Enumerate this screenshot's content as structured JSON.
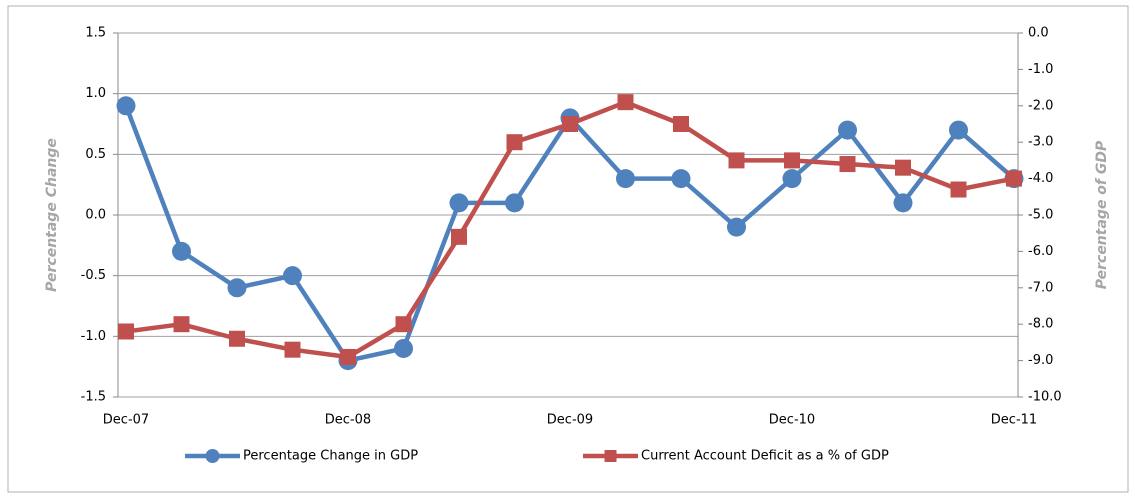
{
  "chart_data": {
    "type": "line",
    "categories": [
      "Dec-07",
      null,
      null,
      null,
      "Dec-08",
      null,
      null,
      null,
      "Dec-09",
      null,
      null,
      null,
      "Dec-10",
      null,
      null,
      null,
      "Dec-11"
    ],
    "series": [
      {
        "name": "Percentage Change in GDP",
        "color": "#4f81bd",
        "marker": "circle",
        "values": [
          0.9,
          -0.3,
          -0.6,
          -0.5,
          -1.2,
          -1.1,
          0.1,
          0.1,
          0.8,
          0.3,
          0.3,
          -0.1,
          0.3,
          0.7,
          0.1,
          0.7,
          0.3
        ]
      },
      {
        "name": "Current Account Deficit as a % of GDP",
        "color": "#c0504d",
        "marker": "square",
        "axis": "y2",
        "values": [
          -8.2,
          -8.0,
          -8.4,
          -8.7,
          -8.9,
          -8.0,
          -5.6,
          -3.0,
          -2.5,
          -1.9,
          -2.5,
          -3.5,
          -3.5,
          -3.6,
          -3.7,
          -4.3,
          -4.0
        ]
      }
    ],
    "ylabel": "Percentage Change",
    "y2label": "Percentage of GDP",
    "ylim": [
      -1.5,
      1.5
    ],
    "yticks": [
      -1.5,
      {
        "value": -1,
        "label": "-1.0"
      },
      -0.5,
      {
        "value": 0,
        "label": "0.0"
      },
      0.5,
      {
        "value": 1,
        "label": "1.0"
      },
      1.5
    ],
    "y2lim": [
      -10,
      0
    ],
    "y2ticks": [
      {
        "value": -10,
        "label": "-10.0"
      },
      {
        "value": -9,
        "label": "-9.0"
      },
      {
        "value": -8,
        "label": "-8.0"
      },
      {
        "value": -7,
        "label": "-7.0"
      },
      {
        "value": -6,
        "label": "-6.0"
      },
      {
        "value": -5,
        "label": "-5.0"
      },
      {
        "value": -4,
        "label": "-4.0"
      },
      {
        "value": -3,
        "label": "-3.0"
      },
      {
        "value": -2,
        "label": "-2.0"
      },
      {
        "value": -1,
        "label": "-1.0"
      },
      {
        "value": 0,
        "label": "0.0"
      }
    ],
    "grid": true,
    "legend": "bottom"
  }
}
